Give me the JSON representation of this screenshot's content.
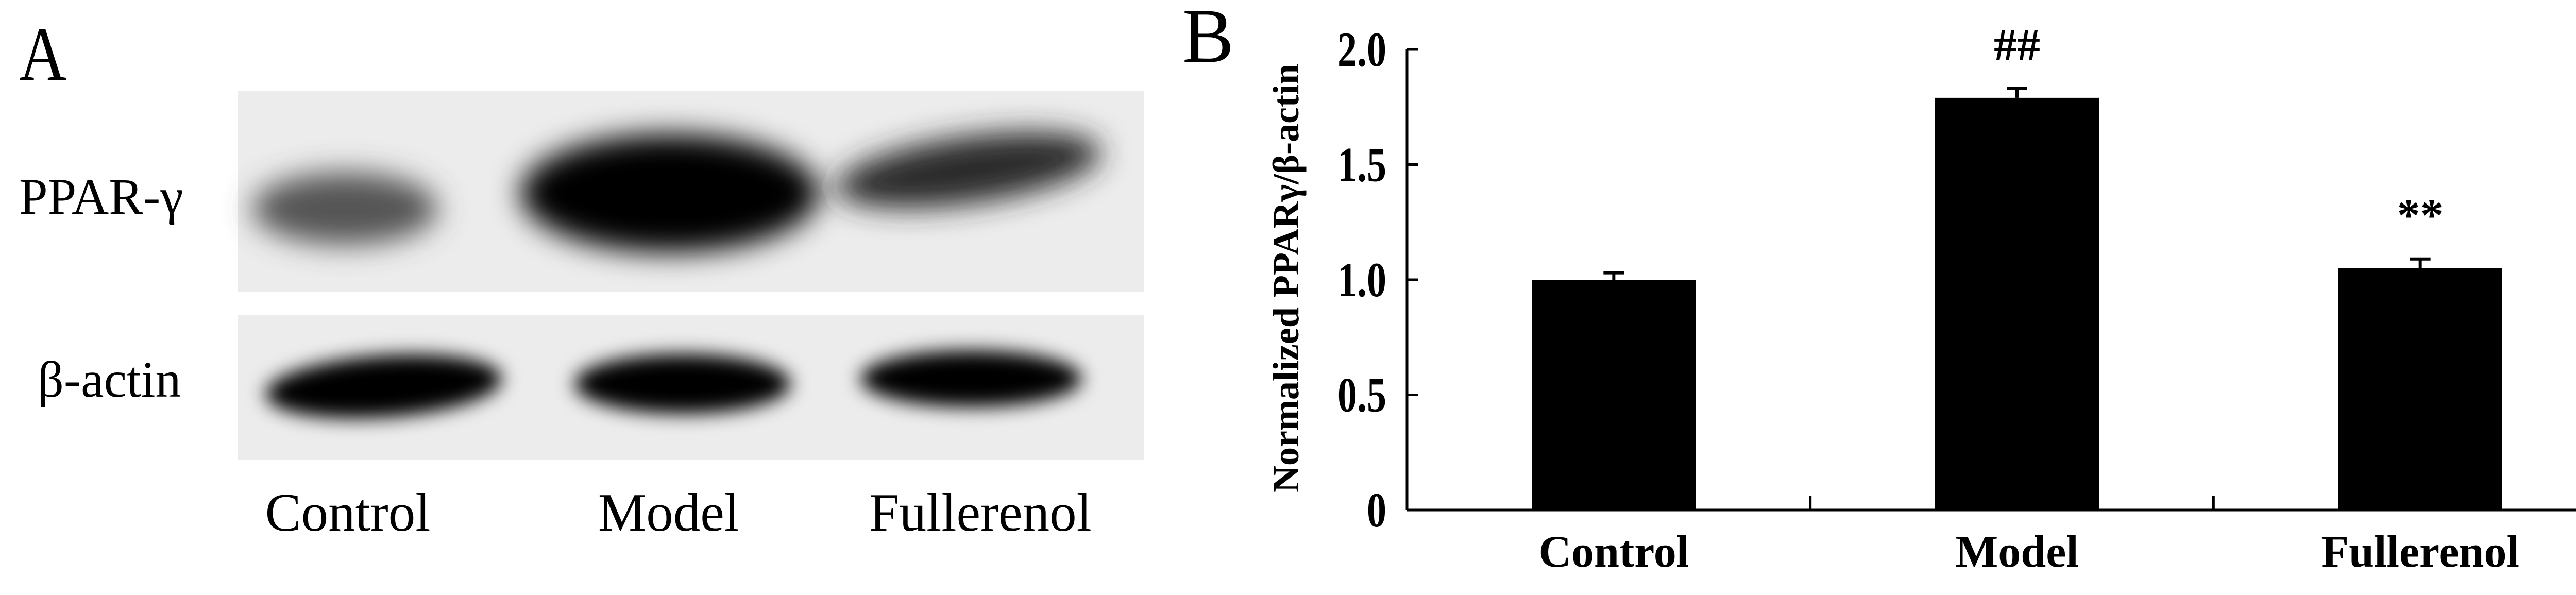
{
  "panel_a": {
    "label": "A",
    "row_labels": [
      "PPAR-γ",
      "β-actin"
    ],
    "lane_labels": [
      "Control",
      "Model",
      "Fullerenol"
    ]
  },
  "panel_b": {
    "label": "B"
  },
  "chart_data": {
    "type": "bar",
    "categories": [
      "Control",
      "Model",
      "Fullerenol"
    ],
    "values": [
      1.0,
      1.79,
      1.05
    ],
    "error_upper": [
      0.03,
      0.04,
      0.04
    ],
    "annotations": [
      "",
      "##",
      "**"
    ],
    "title": "",
    "xlabel": "",
    "ylabel": "Normalized PPARγ/β-actin",
    "ylim": [
      0,
      2.0
    ],
    "yticks": [
      0,
      0.5,
      1.0,
      1.5,
      2.0
    ],
    "ytick_labels": [
      "0",
      "0.5",
      "1.0",
      "1.5",
      "2.0"
    ],
    "grid": false,
    "bar_color": "#000000"
  }
}
